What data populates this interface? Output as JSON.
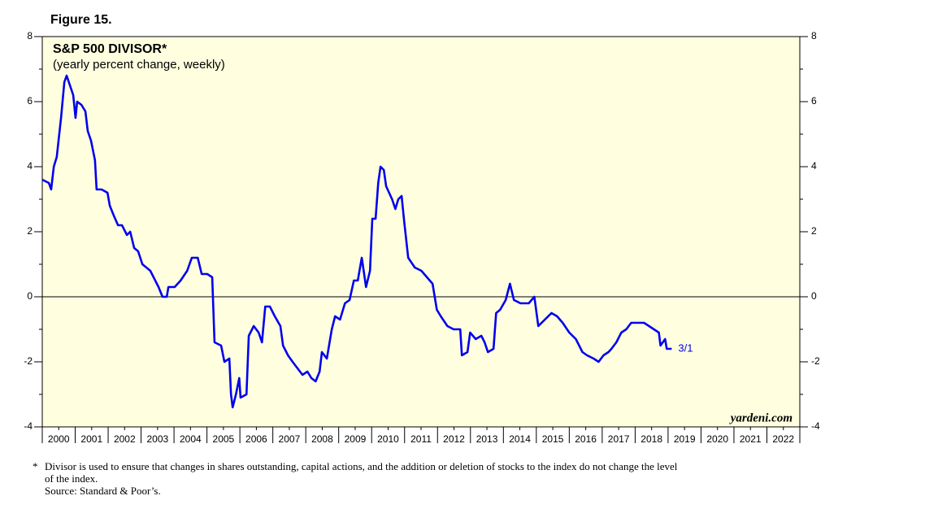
{
  "figure_label": "Figure 15.",
  "chart_data": {
    "type": "line",
    "title": "S&P 500 DIVISOR*",
    "subtitle": "(yearly percent change, weekly)",
    "source_brand": "yardeni.com",
    "annotation": "3/1",
    "xlim": [
      2000,
      2023
    ],
    "xticks": [
      {
        "value": 2000.5,
        "label": "2000"
      },
      {
        "value": 2001.5,
        "label": "2001"
      },
      {
        "value": 2002.5,
        "label": "2002"
      },
      {
        "value": 2003.5,
        "label": "2003"
      },
      {
        "value": 2004.5,
        "label": "2004"
      },
      {
        "value": 2005.5,
        "label": "2005"
      },
      {
        "value": 2006.5,
        "label": "2006"
      },
      {
        "value": 2007.5,
        "label": "2007"
      },
      {
        "value": 2008.5,
        "label": "2008"
      },
      {
        "value": 2009.5,
        "label": "2009"
      },
      {
        "value": 2010.5,
        "label": "2010"
      },
      {
        "value": 2011.5,
        "label": "2011"
      },
      {
        "value": 2012.5,
        "label": "2012"
      },
      {
        "value": 2013.5,
        "label": "2013"
      },
      {
        "value": 2014.5,
        "label": "2014"
      },
      {
        "value": 2015.5,
        "label": "2015"
      },
      {
        "value": 2016.5,
        "label": "2016"
      },
      {
        "value": 2017.5,
        "label": "2017"
      },
      {
        "value": 2018.5,
        "label": "2018"
      },
      {
        "value": 2019.5,
        "label": "2019"
      },
      {
        "value": 2020.5,
        "label": "2020"
      },
      {
        "value": 2021.5,
        "label": "2021"
      },
      {
        "value": 2022.5,
        "label": "2022"
      }
    ],
    "ylim": [
      -4,
      8
    ],
    "yticks": [
      -4,
      -2,
      0,
      2,
      4,
      6,
      8
    ],
    "y2lim": [
      -4,
      8
    ],
    "y2ticks": [
      -4,
      -2,
      0,
      2,
      4,
      6,
      8
    ],
    "x": [
      2000.0,
      2000.2,
      2000.27,
      2000.35,
      2000.44,
      2000.57,
      2000.67,
      2000.74,
      2000.84,
      2000.94,
      2001.01,
      2001.06,
      2001.19,
      2001.31,
      2001.38,
      2001.48,
      2001.6,
      2001.65,
      2001.8,
      2001.98,
      2002.05,
      2002.17,
      2002.3,
      2002.42,
      2002.57,
      2002.67,
      2002.79,
      2002.91,
      2003.04,
      2003.28,
      2003.53,
      2003.65,
      2003.78,
      2003.83,
      2004.02,
      2004.2,
      2004.4,
      2004.54,
      2004.72,
      2004.84,
      2005.01,
      2005.16,
      2005.23,
      2005.43,
      2005.53,
      2005.68,
      2005.73,
      2005.78,
      2005.88,
      2005.98,
      2006.02,
      2006.2,
      2006.27,
      2006.42,
      2006.57,
      2006.67,
      2006.77,
      2006.91,
      2007.06,
      2007.23,
      2007.31,
      2007.46,
      2007.6,
      2007.75,
      2007.9,
      2008.05,
      2008.17,
      2008.3,
      2008.42,
      2008.49,
      2008.64,
      2008.79,
      2008.89,
      2009.04,
      2009.19,
      2009.33,
      2009.46,
      2009.58,
      2009.7,
      2009.83,
      2009.95,
      2010.02,
      2010.12,
      2010.2,
      2010.27,
      2010.37,
      2010.44,
      2010.62,
      2010.72,
      2010.81,
      2010.91,
      2010.99,
      2011.11,
      2011.31,
      2011.51,
      2011.68,
      2011.85,
      2011.98,
      2012.1,
      2012.3,
      2012.49,
      2012.69,
      2012.74,
      2012.91,
      2012.99,
      2013.16,
      2013.33,
      2013.43,
      2013.53,
      2013.7,
      2013.78,
      2013.9,
      2014.07,
      2014.2,
      2014.32,
      2014.52,
      2014.77,
      2014.94,
      2015.06,
      2015.26,
      2015.46,
      2015.63,
      2015.8,
      2016.0,
      2016.2,
      2016.4,
      2016.54,
      2016.74,
      2016.89,
      2017.04,
      2017.19,
      2017.28,
      2017.43,
      2017.58,
      2017.73,
      2017.88,
      2018.1,
      2018.27,
      2018.42,
      2018.57,
      2018.72,
      2018.77,
      2018.91,
      2018.96,
      2019.11
    ],
    "series": [
      {
        "name": "S&P 500 Divisor",
        "color": "#0000ee",
        "values": [
          3.6,
          3.5,
          3.3,
          4.0,
          4.3,
          5.5,
          6.6,
          6.8,
          6.5,
          6.2,
          5.5,
          6.0,
          5.9,
          5.7,
          5.1,
          4.8,
          4.2,
          3.3,
          3.3,
          3.2,
          2.8,
          2.5,
          2.2,
          2.2,
          1.9,
          2.0,
          1.5,
          1.4,
          1.0,
          0.8,
          0.3,
          0.0,
          0.0,
          0.3,
          0.3,
          0.5,
          0.8,
          1.2,
          1.2,
          0.7,
          0.7,
          0.6,
          -1.4,
          -1.5,
          -2.0,
          -1.9,
          -3.0,
          -3.4,
          -3.0,
          -2.5,
          -3.1,
          -3.0,
          -1.2,
          -0.9,
          -1.1,
          -1.4,
          -0.3,
          -0.3,
          -0.6,
          -0.9,
          -1.5,
          -1.8,
          -2.0,
          -2.2,
          -2.4,
          -2.3,
          -2.5,
          -2.6,
          -2.3,
          -1.7,
          -1.9,
          -1.0,
          -0.6,
          -0.7,
          -0.2,
          -0.1,
          0.5,
          0.5,
          1.2,
          0.3,
          0.8,
          2.4,
          2.4,
          3.5,
          4.0,
          3.9,
          3.4,
          3.0,
          2.7,
          3.0,
          3.1,
          2.3,
          1.2,
          0.9,
          0.8,
          0.6,
          0.4,
          -0.4,
          -0.6,
          -0.9,
          -1.0,
          -1.0,
          -1.8,
          -1.7,
          -1.1,
          -1.3,
          -1.2,
          -1.4,
          -1.7,
          -1.6,
          -0.5,
          -0.4,
          -0.1,
          0.4,
          -0.1,
          -0.2,
          -0.2,
          0.0,
          -0.9,
          -0.7,
          -0.5,
          -0.6,
          -0.8,
          -1.1,
          -1.3,
          -1.7,
          -1.8,
          -1.9,
          -2.0,
          -1.8,
          -1.7,
          -1.6,
          -1.4,
          -1.1,
          -1.0,
          -0.8,
          -0.8,
          -0.8,
          -0.9,
          -1.0,
          -1.1,
          -1.5,
          -1.3,
          -1.6,
          -1.6
        ]
      }
    ]
  },
  "footnote": {
    "marker": "*",
    "text": "Divisor is used to ensure that changes in shares outstanding, capital actions, and the addition or deletion of stocks to the index do not change the level",
    "text_cont": "of the index.",
    "source": "Source: Standard & Poor’s."
  }
}
